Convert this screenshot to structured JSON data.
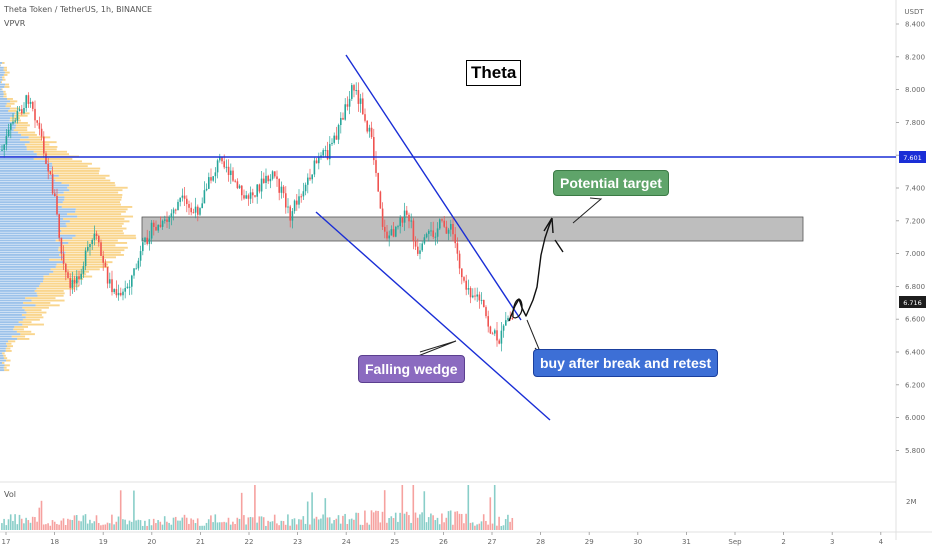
{
  "header": {
    "symbol": "Theta Token / TetherUS, 1h, BINANCE",
    "indicator": "VPVR",
    "currency": "USDT"
  },
  "price_axis": {
    "ticks": [
      "8.400",
      "8.200",
      "8.000",
      "7.800",
      "7.600",
      "7.400",
      "7.200",
      "7.000",
      "6.800",
      "6.600",
      "6.400",
      "6.200",
      "6.000",
      "5.800"
    ],
    "horizontal_level": "7.601",
    "last_price": "6.716",
    "vol_tick": "2M"
  },
  "time_axis": {
    "labels": [
      "17",
      "18",
      "19",
      "20",
      "21",
      "22",
      "23",
      "24",
      "25",
      "26",
      "27",
      "28",
      "29",
      "30",
      "31",
      "Sep",
      "2",
      "3",
      "4"
    ]
  },
  "volume_pane": {
    "label": "Vol"
  },
  "annotations": {
    "title": "Theta",
    "target": "Potential target",
    "wedge": "Falling wedge",
    "entry": "buy after break and retest"
  },
  "colors": {
    "up": "#26a69a",
    "down": "#ef5350",
    "level_line": "#1a2ed6",
    "wedge_line": "#1a2ed6",
    "zone": "#a8a8a8",
    "target_box": "#5fa46a",
    "wedge_box": "#8b6bc0",
    "entry_box": "#3d6fd6",
    "vpvr_blue": "#4a90d9",
    "vpvr_orange": "#f5b941"
  }
}
